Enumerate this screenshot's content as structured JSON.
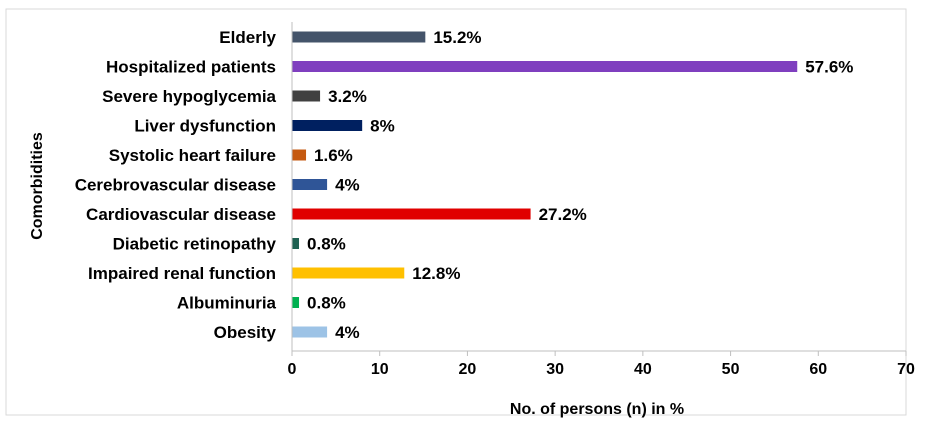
{
  "chart_data": {
    "type": "bar",
    "orientation": "horizontal",
    "title": "",
    "xlabel": "No. of persons (n) in %",
    "ylabel": "Comorbidities",
    "xlim": [
      0,
      70
    ],
    "xticks": [
      0,
      10,
      20,
      30,
      40,
      50,
      60,
      70
    ],
    "grid": false,
    "categories": [
      "Elderly",
      "Hospitalized patients",
      "Severe hypoglycemia",
      "Liver dysfunction",
      "Systolic heart failure",
      "Cerebrovascular disease",
      "Cardiovascular disease",
      "Diabetic retinopathy",
      "Impaired renal function",
      "Albuminuria",
      "Obesity"
    ],
    "values": [
      15.2,
      57.6,
      3.2,
      8,
      1.6,
      4,
      27.2,
      0.8,
      12.8,
      0.8,
      4
    ],
    "data_labels": [
      "15.2%",
      "57.6%",
      "3.2%",
      "8%",
      "1.6%",
      "4%",
      "27.2%",
      "0.8%",
      "12.8%",
      "0.8%",
      "4%"
    ],
    "colors": [
      "#44546A",
      "#7F3FBF",
      "#404040",
      "#002060",
      "#C55A11",
      "#2F5597",
      "#E00000",
      "#1E6152",
      "#FFC000",
      "#00B050",
      "#9DC3E6"
    ]
  }
}
